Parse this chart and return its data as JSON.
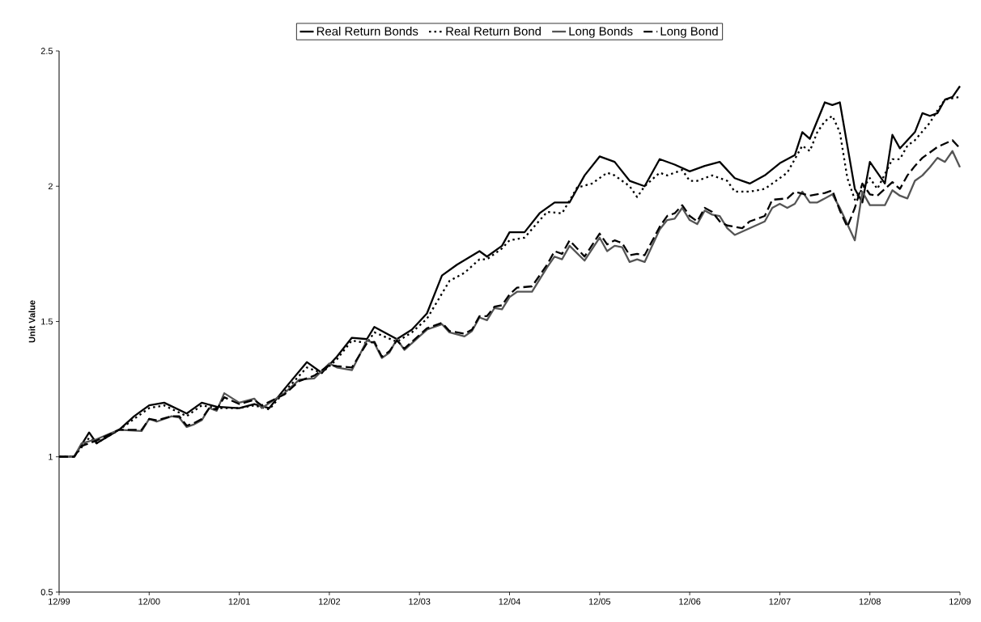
{
  "chart_data": {
    "type": "line",
    "ylabel": "Unit Value",
    "legend": "top",
    "xlim": [
      "1999-12",
      "2009-12"
    ],
    "ylim": [
      0.5,
      2.5
    ],
    "yticks": [
      0.5,
      1,
      1.5,
      2,
      2.5
    ],
    "xticks": [
      {
        "value": "1999-12",
        "label": "12/99"
      },
      {
        "value": "2000-12",
        "label": "12/00"
      },
      {
        "value": "2001-12",
        "label": "12/01"
      },
      {
        "value": "2002-12",
        "label": "12/02"
      },
      {
        "value": "2003-12",
        "label": "12/03"
      },
      {
        "value": "2004-12",
        "label": "12/04"
      },
      {
        "value": "2005-12",
        "label": "12/05"
      },
      {
        "value": "2006-12",
        "label": "12/06"
      },
      {
        "value": "2007-12",
        "label": "12/07"
      },
      {
        "value": "2008-12",
        "label": "12/08"
      },
      {
        "value": "2009-12",
        "label": "12/09"
      }
    ],
    "series": [
      {
        "name": "Real Return Bonds",
        "color": "#000000",
        "line_style": "solid",
        "x": [
          "1999-12",
          "2000-02",
          "2000-04",
          "2000-05",
          "2000-08",
          "2000-10",
          "2000-12",
          "2001-02",
          "2001-05",
          "2001-07",
          "2001-09",
          "2001-12",
          "2002-02",
          "2002-04",
          "2002-06",
          "2002-09",
          "2002-11",
          "2003-01",
          "2003-03",
          "2003-05",
          "2003-06",
          "2003-09",
          "2003-11",
          "2004-01",
          "2004-03",
          "2004-05",
          "2004-08",
          "2004-09",
          "2004-11",
          "2004-12",
          "2005-02",
          "2005-04",
          "2005-06",
          "2005-08",
          "2005-10",
          "2005-12",
          "2006-02",
          "2006-04",
          "2006-06",
          "2006-08",
          "2006-10",
          "2006-12",
          "2007-02",
          "2007-04",
          "2007-06",
          "2007-07",
          "2007-08",
          "2007-10",
          "2007-12",
          "2008-02",
          "2008-03",
          "2008-04",
          "2008-06",
          "2008-07",
          "2008-08",
          "2008-10",
          "2008-11",
          "2008-12",
          "2009-02",
          "2009-03",
          "2009-04",
          "2009-06",
          "2009-07",
          "2009-08",
          "2009-09",
          "2009-10",
          "2009-11",
          "2009-12"
        ],
        "values": [
          1.0,
          1.0,
          1.09,
          1.05,
          1.1,
          1.15,
          1.19,
          1.2,
          1.16,
          1.2,
          1.185,
          1.18,
          1.195,
          1.18,
          1.25,
          1.35,
          1.31,
          1.37,
          1.44,
          1.435,
          1.48,
          1.435,
          1.47,
          1.53,
          1.67,
          1.71,
          1.76,
          1.74,
          1.78,
          1.83,
          1.83,
          1.9,
          1.94,
          1.94,
          2.04,
          2.11,
          2.09,
          2.02,
          2.0,
          2.1,
          2.08,
          2.055,
          2.075,
          2.09,
          2.03,
          2.02,
          2.01,
          2.04,
          2.085,
          2.115,
          2.2,
          2.175,
          2.31,
          2.3,
          2.31,
          1.99,
          1.94,
          2.09,
          2.01,
          2.19,
          2.14,
          2.2,
          2.27,
          2.26,
          2.27,
          2.32,
          2.33,
          2.37
        ]
      },
      {
        "name": "Real Return Bond",
        "color": "#000000",
        "line_style": "dotted",
        "x": [
          "1999-12",
          "2000-02",
          "2000-04",
          "2000-05",
          "2000-08",
          "2000-10",
          "2000-12",
          "2001-02",
          "2001-05",
          "2001-07",
          "2001-09",
          "2001-12",
          "2002-02",
          "2002-04",
          "2002-06",
          "2002-09",
          "2002-11",
          "2003-01",
          "2003-03",
          "2003-05",
          "2003-06",
          "2003-09",
          "2003-11",
          "2004-01",
          "2004-04",
          "2004-06",
          "2004-08",
          "2004-09",
          "2004-11",
          "2004-12",
          "2005-02",
          "2005-05",
          "2005-07",
          "2005-09",
          "2005-11",
          "2006-01",
          "2006-02",
          "2006-04",
          "2006-05",
          "2006-06",
          "2006-08",
          "2006-09",
          "2006-11",
          "2006-12",
          "2007-01",
          "2007-03",
          "2007-05",
          "2007-06",
          "2007-07",
          "2007-08",
          "2007-10",
          "2007-12",
          "2008-01",
          "2008-02",
          "2008-03",
          "2008-04",
          "2008-05",
          "2008-06",
          "2008-07",
          "2008-08",
          "2008-09",
          "2008-10",
          "2008-11",
          "2008-12",
          "2009-01",
          "2009-03",
          "2009-04",
          "2009-05",
          "2009-06",
          "2009-08",
          "2009-09",
          "2009-10",
          "2009-12"
        ],
        "values": [
          1.0,
          1.0,
          1.07,
          1.05,
          1.1,
          1.14,
          1.18,
          1.19,
          1.15,
          1.19,
          1.18,
          1.18,
          1.19,
          1.175,
          1.24,
          1.33,
          1.31,
          1.36,
          1.43,
          1.42,
          1.46,
          1.425,
          1.46,
          1.51,
          1.65,
          1.68,
          1.73,
          1.73,
          1.77,
          1.8,
          1.81,
          1.905,
          1.9,
          1.995,
          2.01,
          2.05,
          2.04,
          2.0,
          1.96,
          2.0,
          2.05,
          2.04,
          2.06,
          2.02,
          2.02,
          2.04,
          2.02,
          1.98,
          1.98,
          1.98,
          1.99,
          2.03,
          2.05,
          2.1,
          2.15,
          2.13,
          2.2,
          2.24,
          2.26,
          2.2,
          2.03,
          1.95,
          1.99,
          2.03,
          1.99,
          2.1,
          2.1,
          2.15,
          2.17,
          2.235,
          2.28,
          2.32,
          2.33
        ]
      },
      {
        "name": "Long Bonds",
        "color": "#555555",
        "line_style": "solid",
        "x": [
          "1999-12",
          "2000-02",
          "2000-03",
          "2000-05",
          "2000-08",
          "2000-11",
          "2000-12",
          "2001-01",
          "2001-03",
          "2001-04",
          "2001-05",
          "2001-06",
          "2001-07",
          "2001-08",
          "2001-09",
          "2001-10",
          "2001-12",
          "2002-02",
          "2002-03",
          "2002-06",
          "2002-08",
          "2002-10",
          "2002-12",
          "2003-01",
          "2003-03",
          "2003-05",
          "2003-06",
          "2003-07",
          "2003-08",
          "2003-09",
          "2003-10",
          "2003-12",
          "2004-01",
          "2004-03",
          "2004-04",
          "2004-06",
          "2004-07",
          "2004-08",
          "2004-09",
          "2004-10",
          "2004-11",
          "2004-12",
          "2005-01",
          "2005-03",
          "2005-05",
          "2005-06",
          "2005-07",
          "2005-08",
          "2005-10",
          "2005-12",
          "2006-01",
          "2006-02",
          "2006-03",
          "2006-04",
          "2006-05",
          "2006-06",
          "2006-08",
          "2006-09",
          "2006-10",
          "2006-11",
          "2006-12",
          "2007-01",
          "2007-02",
          "2007-03",
          "2007-04",
          "2007-05",
          "2007-06",
          "2007-08",
          "2007-10",
          "2007-11",
          "2007-12",
          "2008-01",
          "2008-02",
          "2008-03",
          "2008-04",
          "2008-05",
          "2008-07",
          "2008-08",
          "2008-10",
          "2008-11",
          "2008-12",
          "2009-02",
          "2009-03",
          "2009-04",
          "2009-05",
          "2009-06",
          "2009-07",
          "2009-08",
          "2009-09",
          "2009-10",
          "2009-11",
          "2009-12"
        ],
        "values": [
          1.0,
          1.0,
          1.05,
          1.065,
          1.1,
          1.095,
          1.14,
          1.13,
          1.15,
          1.145,
          1.11,
          1.12,
          1.135,
          1.18,
          1.17,
          1.235,
          1.2,
          1.215,
          1.18,
          1.235,
          1.285,
          1.29,
          1.345,
          1.33,
          1.32,
          1.43,
          1.42,
          1.365,
          1.385,
          1.435,
          1.395,
          1.445,
          1.47,
          1.49,
          1.46,
          1.445,
          1.465,
          1.515,
          1.505,
          1.55,
          1.545,
          1.59,
          1.61,
          1.61,
          1.7,
          1.74,
          1.73,
          1.78,
          1.725,
          1.81,
          1.76,
          1.78,
          1.775,
          1.72,
          1.73,
          1.72,
          1.84,
          1.875,
          1.88,
          1.92,
          1.875,
          1.86,
          1.91,
          1.895,
          1.89,
          1.845,
          1.82,
          1.845,
          1.87,
          1.92,
          1.935,
          1.92,
          1.935,
          1.98,
          1.94,
          1.94,
          1.97,
          1.92,
          1.8,
          1.98,
          1.93,
          1.93,
          1.985,
          1.965,
          1.955,
          2.02,
          2.04,
          2.07,
          2.105,
          2.09,
          2.13,
          2.07
        ]
      },
      {
        "name": "Long Bond",
        "color": "#000000",
        "line_style": "dashed",
        "x": [
          "1999-12",
          "2000-02",
          "2000-03",
          "2000-05",
          "2000-08",
          "2000-11",
          "2000-12",
          "2001-01",
          "2001-03",
          "2001-04",
          "2001-05",
          "2001-06",
          "2001-07",
          "2001-08",
          "2001-09",
          "2001-10",
          "2001-12",
          "2002-02",
          "2002-03",
          "2002-06",
          "2002-08",
          "2002-10",
          "2002-12",
          "2003-01",
          "2003-03",
          "2003-05",
          "2003-06",
          "2003-07",
          "2003-08",
          "2003-09",
          "2003-10",
          "2003-12",
          "2004-01",
          "2004-03",
          "2004-04",
          "2004-06",
          "2004-07",
          "2004-08",
          "2004-09",
          "2004-10",
          "2004-11",
          "2004-12",
          "2005-01",
          "2005-03",
          "2005-05",
          "2005-06",
          "2005-07",
          "2005-08",
          "2005-10",
          "2005-12",
          "2006-01",
          "2006-02",
          "2006-03",
          "2006-04",
          "2006-05",
          "2006-06",
          "2006-08",
          "2006-09",
          "2006-10",
          "2006-11",
          "2006-12",
          "2007-01",
          "2007-02",
          "2007-03",
          "2007-04",
          "2007-05",
          "2007-07",
          "2007-08",
          "2007-10",
          "2007-11",
          "2008-01",
          "2008-02",
          "2008-04",
          "2008-06",
          "2008-07",
          "2008-08",
          "2008-09",
          "2008-10",
          "2008-11",
          "2008-12",
          "2009-01",
          "2009-03",
          "2009-04",
          "2009-05",
          "2009-06",
          "2009-07",
          "2009-09",
          "2009-11",
          "2009-12"
        ],
        "values": [
          1.0,
          1.0,
          1.04,
          1.06,
          1.1,
          1.1,
          1.14,
          1.135,
          1.15,
          1.15,
          1.115,
          1.125,
          1.14,
          1.18,
          1.175,
          1.22,
          1.195,
          1.21,
          1.19,
          1.23,
          1.28,
          1.3,
          1.34,
          1.335,
          1.33,
          1.42,
          1.425,
          1.37,
          1.39,
          1.43,
          1.4,
          1.45,
          1.475,
          1.495,
          1.465,
          1.455,
          1.47,
          1.52,
          1.52,
          1.555,
          1.56,
          1.6,
          1.625,
          1.63,
          1.71,
          1.76,
          1.75,
          1.8,
          1.74,
          1.825,
          1.785,
          1.8,
          1.79,
          1.745,
          1.75,
          1.745,
          1.85,
          1.89,
          1.9,
          1.93,
          1.89,
          1.87,
          1.92,
          1.905,
          1.87,
          1.855,
          1.845,
          1.87,
          1.89,
          1.95,
          1.955,
          1.98,
          1.965,
          1.975,
          1.985,
          1.91,
          1.85,
          1.92,
          2.01,
          1.97,
          1.965,
          2.015,
          1.99,
          2.04,
          2.075,
          2.105,
          2.145,
          2.17,
          2.14
        ]
      }
    ]
  }
}
